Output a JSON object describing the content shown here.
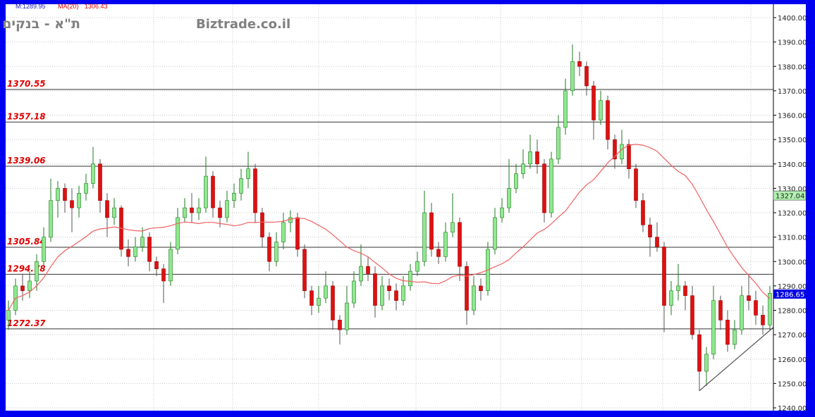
{
  "header": {
    "indicator_text": "M:1289.95",
    "ma_label": "MA(20)",
    "ma_value": "1306.43",
    "instrument_name": "ת\"א - בנקים",
    "watermark": "Biztrade.co.il"
  },
  "colors": {
    "up_fill": "#90e890",
    "up_border": "#1f7a1f",
    "down_fill": "#dd1111",
    "ma_line": "#f06060",
    "frame": "#0000f0"
  },
  "price_tags": {
    "last_price": "1286.65",
    "last_price_color": "#0000e0",
    "ma_tag": "1327.04",
    "ma_tag_color": "#b0f0b0"
  },
  "chart_data": {
    "type": "candlestick",
    "title": "",
    "ylim": [
      1240,
      1400
    ],
    "y_ticks": [
      "1240.00",
      "1250.00",
      "1260.00",
      "1270.00",
      "1280.00",
      "1290.00",
      "1300.00",
      "1310.00",
      "1320.00",
      "1330.00",
      "1340.00",
      "1350.00",
      "1360.00",
      "1370.00",
      "1380.00",
      "1390.00",
      "1400.00"
    ],
    "grid": true,
    "levels": [
      "1370.55",
      "1357.18",
      "1339.06",
      "1305.84",
      "1294.78",
      "1272.37"
    ],
    "moving_average_period": 20,
    "trendline": {
      "from_index": 98,
      "from_price": 1247,
      "to_index": 109,
      "to_price": 1273
    },
    "ohlc": [
      [
        1276,
        1284,
        1272,
        1280
      ],
      [
        1280,
        1293,
        1278,
        1290
      ],
      [
        1290,
        1295,
        1284,
        1288
      ],
      [
        1288,
        1296,
        1285,
        1292
      ],
      [
        1292,
        1303,
        1288,
        1300
      ],
      [
        1300,
        1314,
        1298,
        1310
      ],
      [
        1310,
        1334,
        1308,
        1325
      ],
      [
        1325,
        1333,
        1318,
        1330
      ],
      [
        1330,
        1332,
        1320,
        1325
      ],
      [
        1325,
        1330,
        1312,
        1322
      ],
      [
        1322,
        1331,
        1318,
        1328
      ],
      [
        1328,
        1336,
        1325,
        1332
      ],
      [
        1332,
        1347,
        1330,
        1340
      ],
      [
        1340,
        1342,
        1320,
        1325
      ],
      [
        1325,
        1328,
        1310,
        1318
      ],
      [
        1318,
        1326,
        1315,
        1322
      ],
      [
        1322,
        1323,
        1302,
        1305
      ],
      [
        1305,
        1309,
        1298,
        1302
      ],
      [
        1302,
        1310,
        1300,
        1306
      ],
      [
        1306,
        1314,
        1304,
        1310
      ],
      [
        1310,
        1312,
        1296,
        1300
      ],
      [
        1300,
        1302,
        1294,
        1297
      ],
      [
        1297,
        1299,
        1283,
        1292
      ],
      [
        1292,
        1308,
        1290,
        1305
      ],
      [
        1305,
        1322,
        1303,
        1318
      ],
      [
        1318,
        1326,
        1316,
        1322
      ],
      [
        1322,
        1328,
        1316,
        1320
      ],
      [
        1320,
        1326,
        1317,
        1322
      ],
      [
        1322,
        1343,
        1320,
        1335
      ],
      [
        1335,
        1337,
        1318,
        1322
      ],
      [
        1322,
        1325,
        1314,
        1318
      ],
      [
        1318,
        1329,
        1316,
        1325
      ],
      [
        1325,
        1332,
        1322,
        1328
      ],
      [
        1328,
        1338,
        1325,
        1334
      ],
      [
        1334,
        1345,
        1330,
        1338
      ],
      [
        1338,
        1340,
        1316,
        1320
      ],
      [
        1320,
        1322,
        1306,
        1310
      ],
      [
        1310,
        1312,
        1296,
        1300
      ],
      [
        1300,
        1312,
        1298,
        1308
      ],
      [
        1308,
        1320,
        1305,
        1316
      ],
      [
        1316,
        1321,
        1312,
        1318
      ],
      [
        1318,
        1320,
        1302,
        1305
      ],
      [
        1305,
        1307,
        1285,
        1288
      ],
      [
        1288,
        1290,
        1278,
        1282
      ],
      [
        1282,
        1290,
        1279,
        1285
      ],
      [
        1285,
        1296,
        1283,
        1290
      ],
      [
        1290,
        1292,
        1272,
        1276
      ],
      [
        1276,
        1278,
        1266,
        1272
      ],
      [
        1272,
        1290,
        1270,
        1283
      ],
      [
        1283,
        1296,
        1281,
        1292
      ],
      [
        1292,
        1307,
        1290,
        1298
      ],
      [
        1298,
        1302,
        1292,
        1295
      ],
      [
        1295,
        1298,
        1277,
        1282
      ],
      [
        1282,
        1294,
        1280,
        1290
      ],
      [
        1290,
        1293,
        1284,
        1288
      ],
      [
        1288,
        1291,
        1280,
        1284
      ],
      [
        1284,
        1294,
        1282,
        1290
      ],
      [
        1290,
        1299,
        1288,
        1296
      ],
      [
        1296,
        1304,
        1294,
        1300
      ],
      [
        1300,
        1329,
        1298,
        1320
      ],
      [
        1320,
        1324,
        1302,
        1305
      ],
      [
        1305,
        1308,
        1299,
        1302
      ],
      [
        1302,
        1316,
        1300,
        1312
      ],
      [
        1312,
        1328,
        1310,
        1316
      ],
      [
        1316,
        1318,
        1292,
        1298
      ],
      [
        1298,
        1300,
        1274,
        1280
      ],
      [
        1280,
        1294,
        1278,
        1290
      ],
      [
        1290,
        1293,
        1284,
        1288
      ],
      [
        1288,
        1308,
        1286,
        1305
      ],
      [
        1305,
        1322,
        1303,
        1318
      ],
      [
        1318,
        1326,
        1316,
        1322
      ],
      [
        1322,
        1342,
        1320,
        1330
      ],
      [
        1330,
        1340,
        1328,
        1336
      ],
      [
        1336,
        1346,
        1334,
        1340
      ],
      [
        1340,
        1352,
        1338,
        1345
      ],
      [
        1345,
        1350,
        1336,
        1340
      ],
      [
        1340,
        1342,
        1316,
        1320
      ],
      [
        1320,
        1345,
        1318,
        1342
      ],
      [
        1342,
        1360,
        1340,
        1355
      ],
      [
        1355,
        1375,
        1352,
        1370
      ],
      [
        1370,
        1389,
        1368,
        1382
      ],
      [
        1382,
        1386,
        1376,
        1380
      ],
      [
        1380,
        1382,
        1368,
        1372
      ],
      [
        1372,
        1374,
        1350,
        1358
      ],
      [
        1358,
        1370,
        1356,
        1366
      ],
      [
        1366,
        1368,
        1346,
        1350
      ],
      [
        1350,
        1352,
        1338,
        1342
      ],
      [
        1342,
        1354,
        1340,
        1348
      ],
      [
        1348,
        1350,
        1334,
        1338
      ],
      [
        1338,
        1340,
        1322,
        1325
      ],
      [
        1325,
        1328,
        1312,
        1315
      ],
      [
        1315,
        1318,
        1302,
        1310
      ],
      [
        1310,
        1316,
        1304,
        1306
      ],
      [
        1306,
        1308,
        1271,
        1282
      ],
      [
        1282,
        1292,
        1278,
        1288
      ],
      [
        1288,
        1299,
        1284,
        1290
      ],
      [
        1290,
        1292,
        1280,
        1286
      ],
      [
        1286,
        1290,
        1268,
        1270
      ],
      [
        1270,
        1272,
        1247,
        1255
      ],
      [
        1255,
        1265,
        1249,
        1262
      ],
      [
        1262,
        1290,
        1260,
        1284
      ],
      [
        1284,
        1286,
        1272,
        1276
      ],
      [
        1276,
        1280,
        1263,
        1266
      ],
      [
        1266,
        1276,
        1264,
        1272
      ],
      [
        1272,
        1290,
        1270,
        1286
      ],
      [
        1286,
        1295,
        1280,
        1284
      ],
      [
        1284,
        1288,
        1274,
        1278
      ],
      [
        1278,
        1282,
        1270,
        1274
      ],
      [
        1274,
        1290,
        1272,
        1287
      ]
    ]
  }
}
